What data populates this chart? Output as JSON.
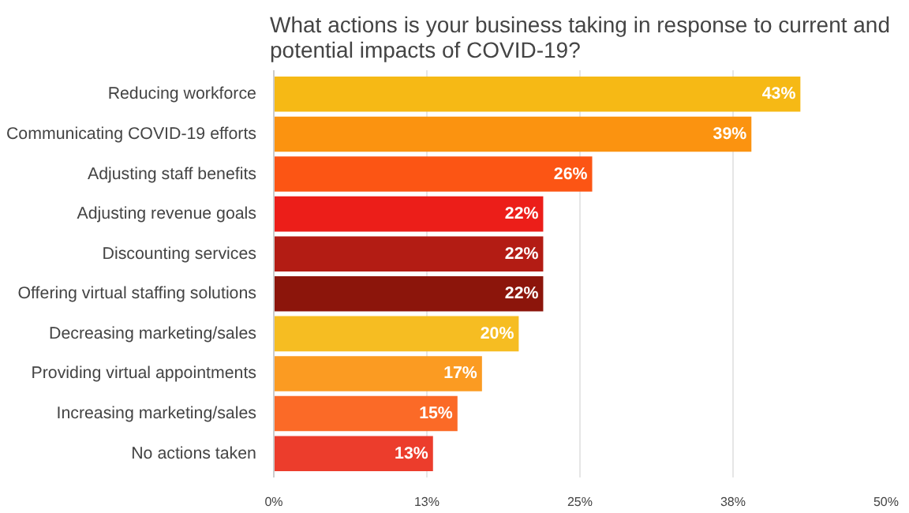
{
  "chart_data": {
    "type": "bar",
    "orientation": "horizontal",
    "title": "What actions is your business taking in response to current and\npotential impacts of COVID-19?",
    "categories": [
      "Reducing workforce",
      "Communicating COVID-19 efforts",
      "Adjusting staff benefits",
      "Adjusting revenue goals",
      "Discounting services",
      "Offering virtual staffing solutions",
      "Decreasing marketing/sales",
      "Providing virtual appointments",
      "Increasing marketing/sales",
      "No actions taken"
    ],
    "values": [
      43,
      39,
      26,
      22,
      22,
      22,
      20,
      17,
      15,
      13
    ],
    "value_labels": [
      "43%",
      "39%",
      "26%",
      "22%",
      "22%",
      "22%",
      "20%",
      "17%",
      "15%",
      "13%"
    ],
    "colors": [
      "#f6b915",
      "#fb9310",
      "#fc5514",
      "#ec1e19",
      "#b31c14",
      "#8c150b",
      "#f6bd22",
      "#fb9b22",
      "#fb6a27",
      "#ec3d2c"
    ],
    "xlim": [
      0,
      50
    ],
    "xticks": [
      {
        "value": 0,
        "label": "0%"
      },
      {
        "value": 12.5,
        "label": "13%"
      },
      {
        "value": 25,
        "label": "25%"
      },
      {
        "value": 37.5,
        "label": "38%"
      },
      {
        "value": 50,
        "label": "50%"
      }
    ],
    "grid": "x"
  }
}
